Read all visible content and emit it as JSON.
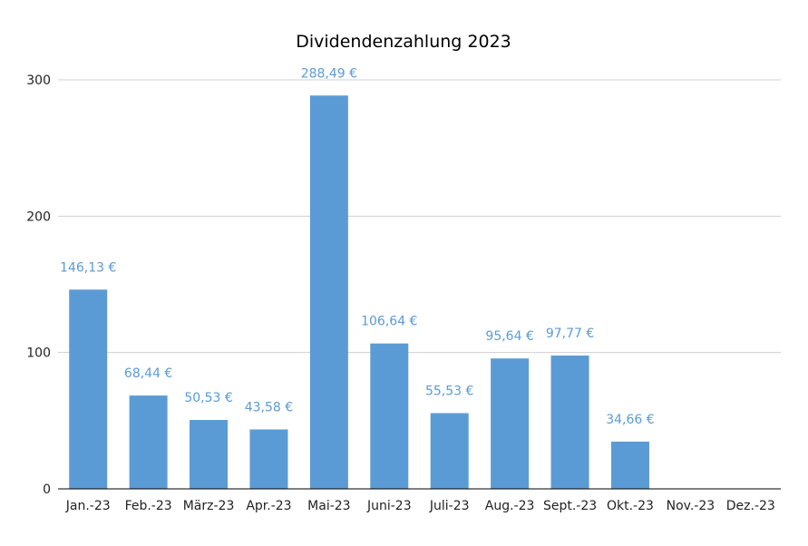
{
  "chart_data": {
    "type": "bar",
    "title": "Dividendenzahlung 2023",
    "xlabel": "",
    "ylabel": "",
    "categories": [
      "Jan.-23",
      "Feb.-23",
      "März-23",
      "Apr.-23",
      "Mai-23",
      "Juni-23",
      "Juli-23",
      "Aug.-23",
      "Sept.-23",
      "Okt.-23",
      "Nov.-23",
      "Dez.-23"
    ],
    "values": [
      146.13,
      68.44,
      50.53,
      43.58,
      288.49,
      106.64,
      55.53,
      95.64,
      97.77,
      34.66,
      null,
      null
    ],
    "data_labels": [
      "146,13 €",
      "68,44 €",
      "50,53 €",
      "43,58 €",
      "288,49 €",
      "106,64 €",
      "55,53 €",
      "95,64 €",
      "97,77 €",
      "34,66 €",
      "",
      ""
    ],
    "ylim": [
      0,
      300
    ],
    "yticks": [
      0,
      100,
      200,
      300
    ],
    "grid": true,
    "legend": "none",
    "colors": {
      "bar": "#5b9bd5",
      "data_label": "#5b9bd5",
      "grid": "#d0d0d0",
      "axis": "#000000"
    }
  }
}
